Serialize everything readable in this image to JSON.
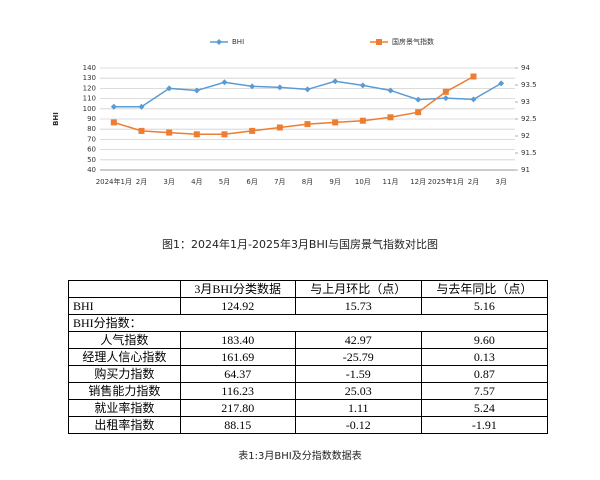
{
  "chart_data": {
    "type": "line",
    "categories": [
      "2024年1月",
      "2月",
      "3月",
      "4月",
      "5月",
      "6月",
      "7月",
      "8月",
      "9月",
      "10月",
      "11月",
      "12月",
      "2025年1月",
      "2月",
      "3月"
    ],
    "ylabel": "BHI",
    "ylim": [
      40,
      140
    ],
    "yticks": [
      40,
      50,
      60,
      70,
      80,
      90,
      100,
      110,
      120,
      130,
      140
    ],
    "y2lim": [
      91,
      94
    ],
    "y2ticks": [
      91,
      91.5,
      92,
      92.5,
      93,
      93.5,
      94
    ],
    "grid": true,
    "legend": "top",
    "series": [
      {
        "name": "BHI",
        "color": "#5b9bd5",
        "marker": "diamond",
        "values": [
          102,
          102,
          120,
          118,
          126,
          122,
          121,
          119,
          127,
          123,
          118,
          109,
          110.5,
          109.19,
          124.92
        ]
      },
      {
        "name": "国房景气指数",
        "color": "#ed7d31",
        "marker": "square",
        "axis": "y2",
        "values": [
          92.4,
          92.15,
          92.1,
          92.05,
          92.05,
          92.15,
          92.25,
          92.35,
          92.4,
          92.45,
          92.55,
          92.7,
          93.3,
          93.75,
          null
        ]
      }
    ]
  },
  "figure_caption": "图1：2024年1月-2025年3月BHI与国房景气指数对比图",
  "table": {
    "header": [
      "3月BHI分类数据",
      "与上月环比（点）",
      "与去年同比（点）"
    ],
    "rows": [
      [
        "BHI",
        "124.92",
        "15.73",
        "5.16"
      ]
    ],
    "section": "BHI分指数：",
    "subrows": [
      [
        "人气指数",
        "183.40",
        "42.97",
        "9.60"
      ],
      [
        "经理人信心指数",
        "161.69",
        "-25.79",
        "0.13"
      ],
      [
        "购买力指数",
        "64.37",
        "-1.59",
        "0.87"
      ],
      [
        "销售能力指数",
        "116.23",
        "25.03",
        "7.57"
      ],
      [
        "就业率指数",
        "217.80",
        "1.11",
        "5.24"
      ],
      [
        "出租率指数",
        "88.15",
        "-0.12",
        "-1.91"
      ]
    ]
  },
  "table_caption": "表1:3月BHI及分指数数据表"
}
